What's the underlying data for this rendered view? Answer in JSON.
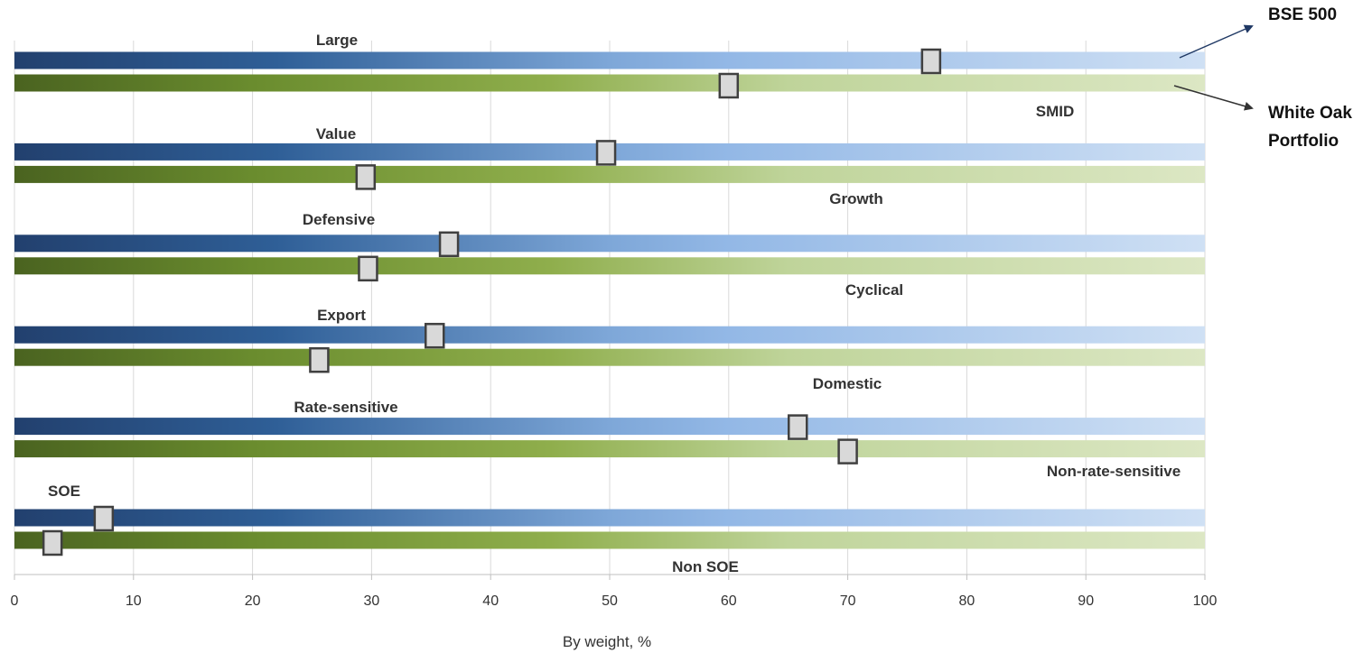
{
  "chart_data": {
    "type": "bar",
    "title": "",
    "xlabel": "By weight, %",
    "ylabel": "",
    "xlim": [
      0,
      100
    ],
    "xticks": [
      0,
      10,
      20,
      30,
      40,
      50,
      60,
      70,
      80,
      90,
      100
    ],
    "grid": true,
    "series": [
      {
        "name": "BSE 500",
        "color": "#2b5797"
      },
      {
        "name": "White Oak Portfolio",
        "color": "#6a8c2e"
      }
    ],
    "legend": {
      "line1": "BSE 500",
      "line2a": "White Oak",
      "line2b": "Portfolio",
      "placement": "right"
    },
    "categories": [
      {
        "left": "Large",
        "right": "SMID",
        "values": [
          77,
          60
        ]
      },
      {
        "left": "Value",
        "right": "Growth",
        "values": [
          49.7,
          29.5
        ]
      },
      {
        "left": "Defensive",
        "right": "Cyclical",
        "values": [
          36.5,
          29.7
        ]
      },
      {
        "left": "Export",
        "right": "Domestic",
        "values": [
          35.3,
          25.6
        ]
      },
      {
        "left": "Rate-sensitive",
        "right": "Non-rate-sensitive",
        "values": [
          65.8,
          70
        ]
      },
      {
        "left": "SOE",
        "right": "Non SOE",
        "values": [
          7.5,
          3.2
        ]
      }
    ]
  }
}
